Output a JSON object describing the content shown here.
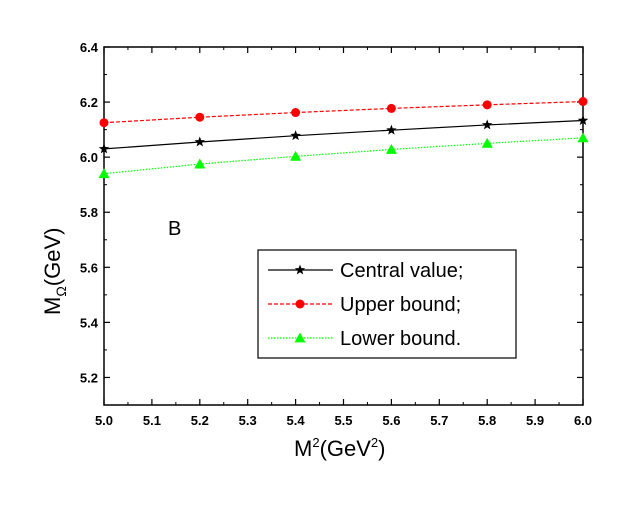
{
  "chart_data": {
    "type": "line",
    "xlabel": "M",
    "xlabel_sup": "2",
    "xlabel_tail": "(GeV",
    "xlabel_tail_sup": "2",
    "xlabel_end": ")",
    "ylabel": "M",
    "ylabel_sub": "Ω",
    "ylabel_tail": "(GeV)",
    "panel_label": "B",
    "xlim": [
      5.0,
      6.0
    ],
    "ylim": [
      5.1,
      6.4
    ],
    "xticks": [
      "5.0",
      "5.1",
      "5.2",
      "5.3",
      "5.4",
      "5.5",
      "5.6",
      "5.7",
      "5.8",
      "5.9",
      "6.0"
    ],
    "yticks": [
      "5.2",
      "5.4",
      "5.6",
      "5.8",
      "6.0",
      "6.2",
      "6.4"
    ],
    "legend_position": "bottom-right",
    "series": [
      {
        "name": "Central value;",
        "color": "#000000",
        "marker": "star",
        "dash": "solid",
        "x": [
          5.0,
          5.2,
          5.4,
          5.6,
          5.8,
          6.0
        ],
        "y": [
          6.03,
          6.055,
          6.078,
          6.098,
          6.117,
          6.133
        ]
      },
      {
        "name": "Upper bound;",
        "color": "#ff0000",
        "marker": "circle",
        "dash": "dashed",
        "x": [
          5.0,
          5.2,
          5.4,
          5.6,
          5.8,
          6.0
        ],
        "y": [
          6.125,
          6.145,
          6.162,
          6.177,
          6.19,
          6.202
        ]
      },
      {
        "name": "Lower bound.",
        "color": "#00ff00",
        "marker": "triangle",
        "dash": "dotted",
        "x": [
          5.0,
          5.2,
          5.4,
          5.6,
          5.8,
          6.0
        ],
        "y": [
          5.94,
          5.975,
          6.003,
          6.028,
          6.05,
          6.07
        ]
      }
    ]
  }
}
